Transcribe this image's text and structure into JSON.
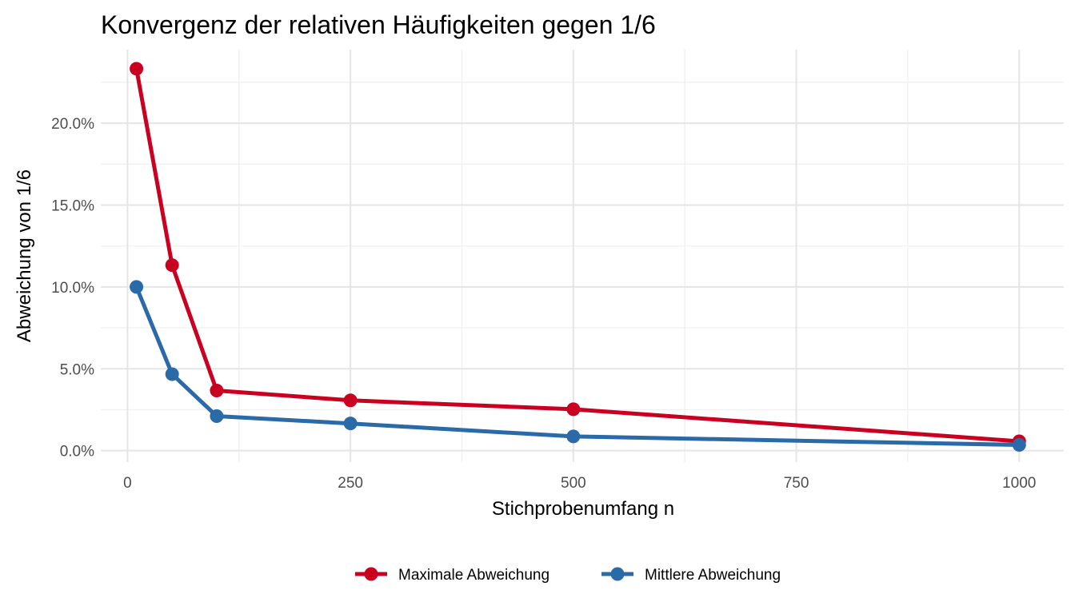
{
  "chart_data": {
    "type": "line",
    "title": "Konvergenz der relativen Häufigkeiten gegen 1/6",
    "xlabel": "Stichprobenumfang n",
    "ylabel": "Abweichung von 1/6",
    "x": [
      10,
      50,
      100,
      250,
      500,
      1000
    ],
    "series": [
      {
        "name": "Maximale Abweichung",
        "color": "#ca0020",
        "values": [
          0.2333,
          0.1133,
          0.0367,
          0.0307,
          0.0253,
          0.0057
        ]
      },
      {
        "name": "Mittlere Abweichung",
        "color": "#2b6aa8",
        "values": [
          0.1,
          0.0467,
          0.0211,
          0.0166,
          0.0087,
          0.0035
        ]
      }
    ],
    "xlim": [
      -30,
      1050
    ],
    "ylim": [
      -0.007,
      0.245
    ],
    "x_ticks": [
      0,
      250,
      500,
      750,
      1000
    ],
    "x_tick_labels": [
      "0",
      "250",
      "500",
      "750",
      "1000"
    ],
    "y_ticks": [
      0,
      0.05,
      0.1,
      0.15,
      0.2
    ],
    "y_tick_labels": [
      "0.0%",
      "5.0%",
      "10.0%",
      "15.0%",
      "20.0%"
    ],
    "grid": true,
    "legend_position": "bottom"
  }
}
